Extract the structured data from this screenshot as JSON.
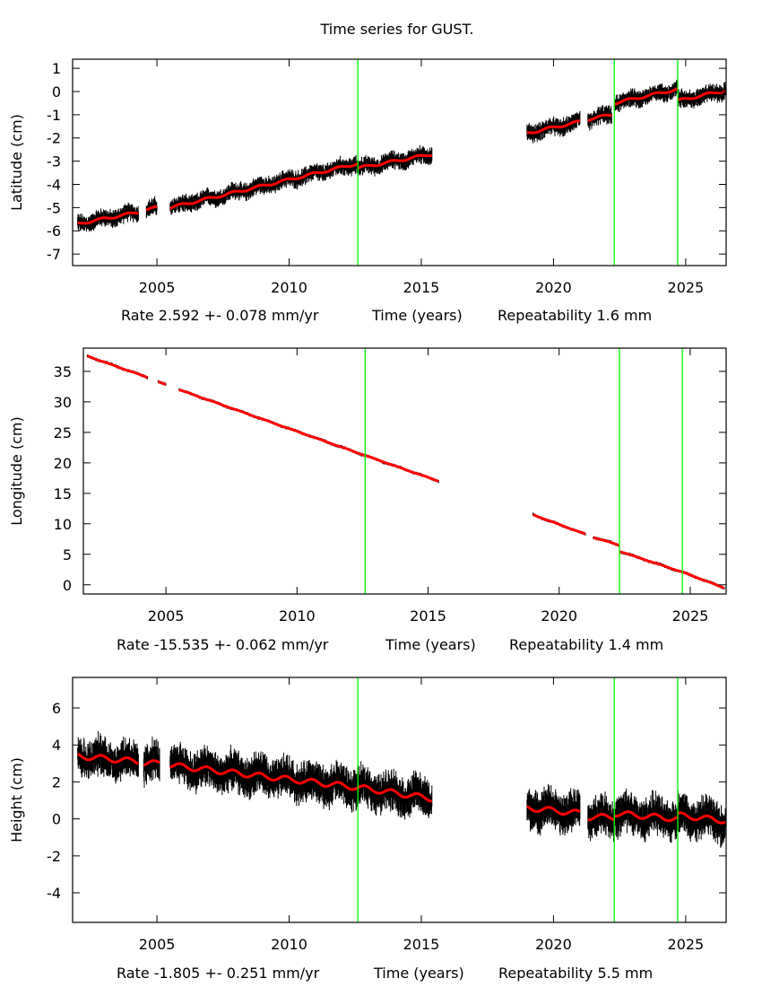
{
  "chart_data": {
    "type": "scatter",
    "title": "Time series for GUST.",
    "discontinuities": [
      2012.6,
      2022.3,
      2024.7
    ],
    "colors": {
      "data": "#000000",
      "model": "#ff0000",
      "break": "#00ff00"
    },
    "panels": [
      {
        "ylabel": "Latitude (cm)",
        "xlabel": "Time (years)",
        "rate": "Rate 2.592 +- 0.078 mm/yr",
        "repeatability": "Repeatability 1.6 mm",
        "xlim": [
          2001.81,
          2026.53
        ],
        "ylim": [
          -7.5,
          1.39
        ],
        "xticks": [
          2005,
          2010,
          2015,
          2020,
          2025
        ],
        "yticks": [
          1,
          0,
          -1,
          -2,
          -3,
          -4,
          -5,
          -6,
          -7
        ],
        "noise": 0.35,
        "segments": [
          {
            "x": [
              2002.0,
              2004.3
            ],
            "y": [
              -5.7,
              -5.2
            ]
          },
          {
            "x": [
              2004.6,
              2005.0
            ],
            "y": [
              -5.1,
              -5.0
            ]
          },
          {
            "x": [
              2005.5,
              2012.6
            ],
            "y": [
              -5.0,
              -3.1
            ]
          },
          {
            "x": [
              2012.6,
              2015.4
            ],
            "y": [
              -3.3,
              -2.7
            ]
          },
          {
            "x": [
              2019.0,
              2021.0
            ],
            "y": [
              -1.8,
              -1.3
            ]
          },
          {
            "x": [
              2021.3,
              2022.2
            ],
            "y": [
              -1.2,
              -1.0
            ]
          },
          {
            "x": [
              2022.3,
              2024.7
            ],
            "y": [
              -0.5,
              0.1
            ]
          },
          {
            "x": [
              2024.7,
              2026.5
            ],
            "y": [
              -0.4,
              0.05
            ]
          }
        ]
      },
      {
        "ylabel": "Longitude (cm)",
        "xlabel": "Time (years)",
        "rate": "Rate -15.535 +- 0.062 mm/yr",
        "repeatability": "Repeatability 1.4 mm",
        "xlim": [
          2001.85,
          2026.37
        ],
        "ylim": [
          -1.5,
          38.8
        ],
        "xticks": [
          2005,
          2010,
          2015,
          2020,
          2025
        ],
        "yticks": [
          35,
          30,
          25,
          20,
          15,
          10,
          5,
          0
        ],
        "noise": 0.25,
        "segments": [
          {
            "x": [
              2002.0,
              2004.3
            ],
            "y": [
              37.5,
              34.0
            ]
          },
          {
            "x": [
              2004.7,
              2005.0
            ],
            "y": [
              33.3,
              32.8
            ]
          },
          {
            "x": [
              2005.5,
              2012.6
            ],
            "y": [
              32.0,
              21.2
            ]
          },
          {
            "x": [
              2012.6,
              2015.4
            ],
            "y": [
              21.2,
              17.0
            ]
          },
          {
            "x": [
              2019.0,
              2021.0
            ],
            "y": [
              11.5,
              8.3
            ]
          },
          {
            "x": [
              2021.3,
              2022.3
            ],
            "y": [
              7.8,
              6.5
            ]
          },
          {
            "x": [
              2022.3,
              2024.7
            ],
            "y": [
              5.5,
              2.1
            ]
          },
          {
            "x": [
              2024.7,
              2026.3
            ],
            "y": [
              2.1,
              -0.5
            ]
          }
        ]
      },
      {
        "ylabel": "Height (cm)",
        "xlabel": "Time (years)",
        "rate": "Rate -1.805 +- 0.251 mm/yr",
        "repeatability": "Repeatability 5.5 mm",
        "xlim": [
          2001.81,
          2026.53
        ],
        "ylim": [
          -5.6,
          7.65
        ],
        "xticks": [
          2005,
          2010,
          2015,
          2020,
          2025
        ],
        "yticks": [
          6,
          4,
          2,
          0,
          -2,
          -4
        ],
        "noise": 1.0,
        "segments": [
          {
            "x": [
              2002.0,
              2004.3
            ],
            "y": [
              3.4,
              3.1
            ]
          },
          {
            "x": [
              2004.5,
              2005.1
            ],
            "y": [
              3.0,
              3.0
            ]
          },
          {
            "x": [
              2005.5,
              2012.6
            ],
            "y": [
              2.9,
              1.7
            ]
          },
          {
            "x": [
              2012.6,
              2015.4
            ],
            "y": [
              1.7,
              1.1
            ]
          },
          {
            "x": [
              2019.0,
              2021.0
            ],
            "y": [
              0.6,
              0.3
            ]
          },
          {
            "x": [
              2021.3,
              2022.3
            ],
            "y": [
              0.1,
              0.1
            ]
          },
          {
            "x": [
              2022.3,
              2024.7
            ],
            "y": [
              0.3,
              0.0
            ]
          },
          {
            "x": [
              2024.7,
              2026.5
            ],
            "y": [
              0.2,
              -0.1
            ]
          }
        ]
      }
    ]
  }
}
